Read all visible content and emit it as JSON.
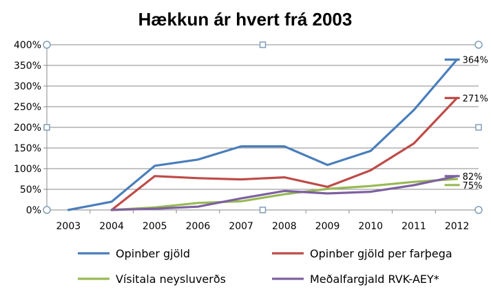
{
  "chart_data": {
    "type": "line",
    "title": "Hækkun ár hvert frá 2003",
    "xlabel": "",
    "ylabel": "",
    "categories": [
      "2003",
      "2004",
      "2005",
      "2006",
      "2007",
      "2008",
      "2009",
      "2010",
      "2011",
      "2012"
    ],
    "y_ticks": [
      "0%",
      "50%",
      "100%",
      "150%",
      "200%",
      "250%",
      "300%",
      "350%",
      "400%"
    ],
    "ylim": [
      0,
      400
    ],
    "grid": true,
    "legend_position": "bottom",
    "series": [
      {
        "name": "Opinber gjöld",
        "color": "#4a7ebb",
        "values": [
          0,
          20,
          107,
          122,
          154,
          154,
          109,
          143,
          242,
          364
        ],
        "end_label": "364%"
      },
      {
        "name": "Opinber gjöld per farþega",
        "color": "#be4b48",
        "values": [
          null,
          0,
          82,
          77,
          74,
          79,
          56,
          96,
          161,
          271
        ],
        "end_label": "271%"
      },
      {
        "name": "Vísitala neysluverðs",
        "color": "#98b954",
        "values": [
          null,
          0,
          6,
          17,
          21,
          38,
          51,
          58,
          68,
          75
        ],
        "end_label": "75%"
      },
      {
        "name": "Meðalfargjald RVK-AEY*",
        "color": "#7d60a0",
        "values": [
          null,
          0,
          3,
          8,
          28,
          46,
          40,
          44,
          60,
          82
        ],
        "end_label": "82%"
      }
    ]
  }
}
